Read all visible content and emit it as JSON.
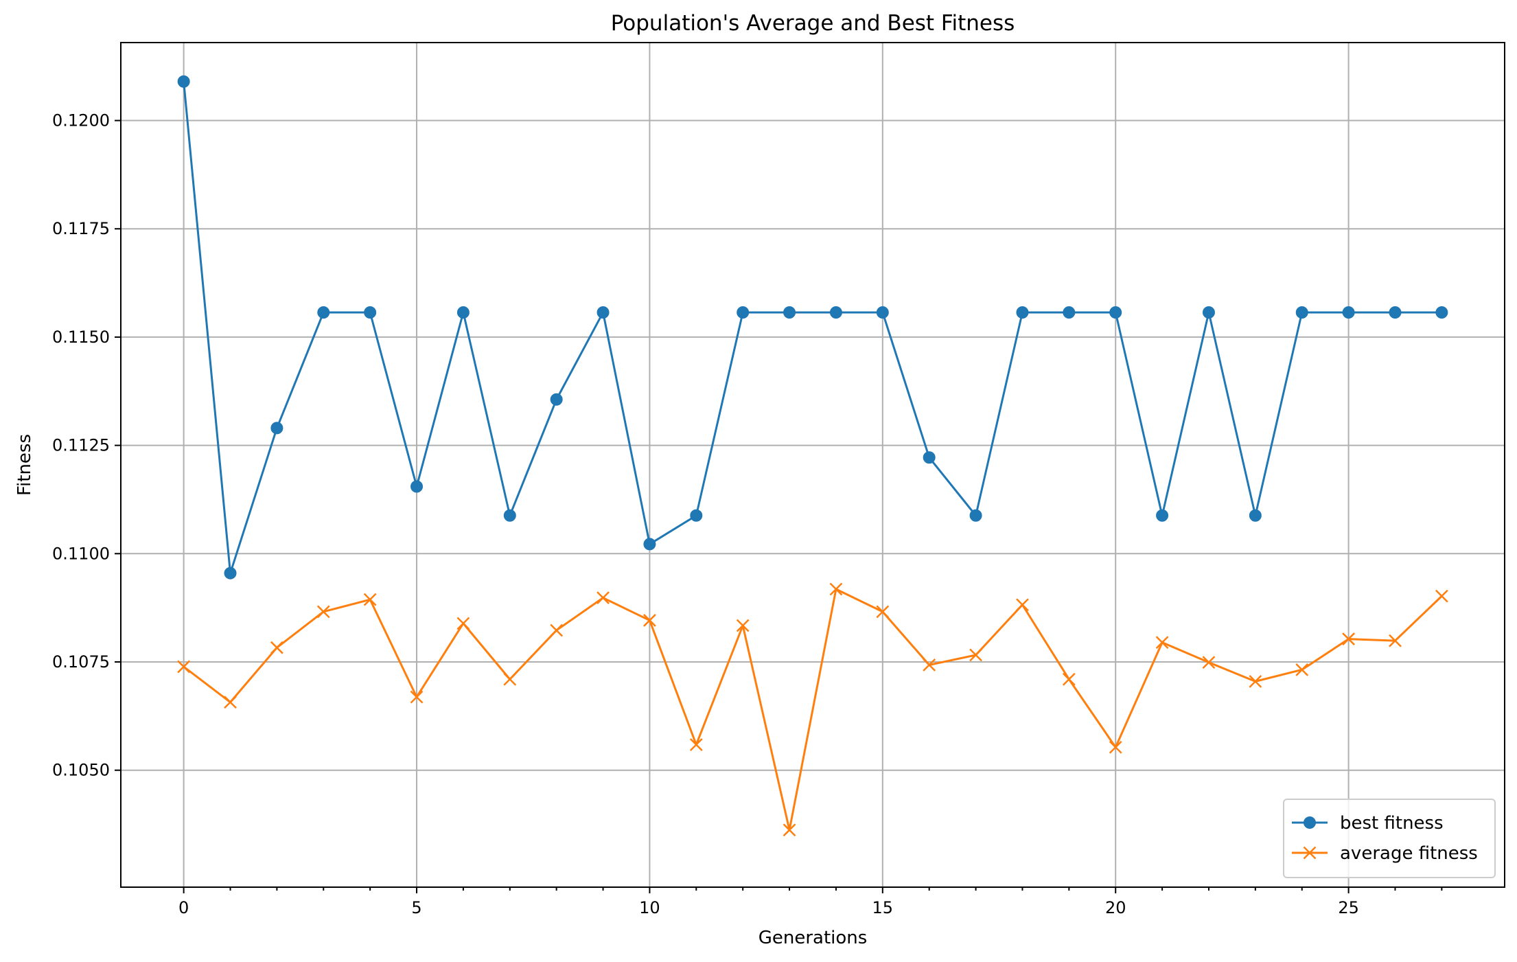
{
  "chart_data": {
    "type": "line",
    "title": "Population's Average and Best Fitness",
    "xlabel": "Generations",
    "ylabel": "Fitness",
    "xlim": [
      -1.35,
      28.35
    ],
    "ylim": [
      0.1023,
      0.1218
    ],
    "x_ticks": [
      0,
      5,
      10,
      15,
      20,
      25
    ],
    "x_tick_labels": [
      "0",
      "5",
      "10",
      "15",
      "20",
      "25"
    ],
    "x_minor_ticks": [
      1,
      2,
      3,
      4,
      6,
      7,
      8,
      9,
      11,
      12,
      13,
      14,
      16,
      17,
      18,
      19,
      21,
      22,
      23,
      24,
      26,
      27
    ],
    "y_ticks": [
      0.105,
      0.1075,
      0.11,
      0.1125,
      0.115,
      0.1175,
      0.12
    ],
    "y_tick_labels": [
      "0.1050",
      "0.1075",
      "0.1100",
      "0.1125",
      "0.1150",
      "0.1175",
      "0.1200"
    ],
    "grid": true,
    "legend_position": "bottom-right",
    "x": [
      0,
      1,
      2,
      3,
      4,
      5,
      6,
      7,
      8,
      9,
      10,
      11,
      12,
      13,
      14,
      15,
      16,
      17,
      18,
      19,
      20,
      21,
      22,
      23,
      24,
      25,
      26,
      27
    ],
    "series": [
      {
        "name": "best fitness",
        "color": "#1f77b4",
        "marker": "circle",
        "values": [
          0.1209,
          0.10955,
          0.1129,
          0.11557,
          0.11557,
          0.11155,
          0.11557,
          0.11088,
          0.11356,
          0.11557,
          0.11022,
          0.11088,
          0.11557,
          0.11557,
          0.11557,
          0.11557,
          0.11222,
          0.11088,
          0.11557,
          0.11557,
          0.11557,
          0.11088,
          0.11557,
          0.11088,
          0.11557,
          0.11557,
          0.11557,
          0.11557
        ]
      },
      {
        "name": "average fitness",
        "color": "#ff7f0e",
        "marker": "x",
        "values": [
          0.10739,
          0.10657,
          0.10783,
          0.10866,
          0.10894,
          0.10669,
          0.10839,
          0.1071,
          0.10823,
          0.10898,
          0.10846,
          0.10559,
          0.10834,
          0.10362,
          0.10918,
          0.10866,
          0.10743,
          0.10766,
          0.10882,
          0.1071,
          0.10553,
          0.10795,
          0.10749,
          0.10705,
          0.10732,
          0.10803,
          0.10799,
          0.10902
        ]
      }
    ]
  }
}
